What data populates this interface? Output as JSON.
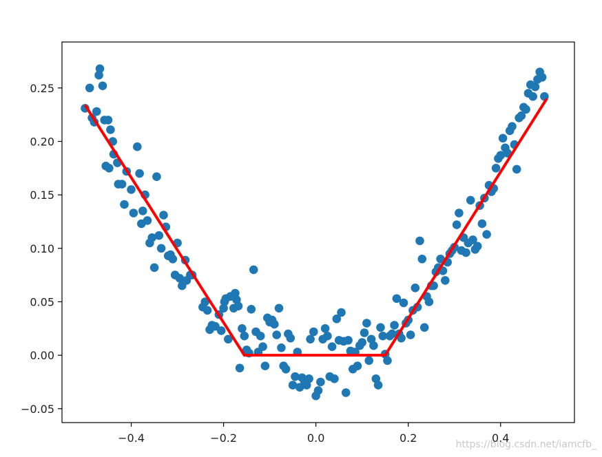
{
  "chart_data": {
    "type": "scatter",
    "title": "",
    "xlabel": "",
    "ylabel": "",
    "xlim": [
      -0.55,
      0.56
    ],
    "ylim": [
      -0.063,
      0.293
    ],
    "x_ticks": [
      -0.4,
      -0.2,
      0.0,
      0.2,
      0.4
    ],
    "x_tick_labels": [
      "−0.4",
      "−0.2",
      "0.0",
      "0.2",
      "0.4"
    ],
    "y_ticks": [
      -0.05,
      0.0,
      0.05,
      0.1,
      0.15,
      0.2,
      0.25
    ],
    "y_tick_labels": [
      "−0.05",
      "0.00",
      "0.05",
      "0.10",
      "0.15",
      "0.20",
      "0.25"
    ],
    "grid": false,
    "colors": {
      "points": "#1f77b4",
      "fit_line": "#ff0000",
      "axes": "#000000"
    },
    "series": [
      {
        "type": "scatter",
        "points": [
          [
            -0.5,
            0.231
          ],
          [
            -0.49,
            0.25
          ],
          [
            -0.485,
            0.222
          ],
          [
            -0.48,
            0.218
          ],
          [
            -0.475,
            0.228
          ],
          [
            -0.47,
            0.262
          ],
          [
            -0.468,
            0.268
          ],
          [
            -0.462,
            0.252
          ],
          [
            -0.458,
            0.22
          ],
          [
            -0.45,
            0.22
          ],
          [
            -0.445,
            0.211
          ],
          [
            -0.44,
            0.2
          ],
          [
            -0.455,
            0.177
          ],
          [
            -0.448,
            0.175
          ],
          [
            -0.438,
            0.188
          ],
          [
            -0.43,
            0.18
          ],
          [
            -0.428,
            0.16
          ],
          [
            -0.42,
            0.16
          ],
          [
            -0.415,
            0.141
          ],
          [
            -0.41,
            0.172
          ],
          [
            -0.4,
            0.155
          ],
          [
            -0.395,
            0.133
          ],
          [
            -0.387,
            0.195
          ],
          [
            -0.382,
            0.17
          ],
          [
            -0.378,
            0.123
          ],
          [
            -0.375,
            0.135
          ],
          [
            -0.37,
            0.15
          ],
          [
            -0.365,
            0.126
          ],
          [
            -0.36,
            0.105
          ],
          [
            -0.355,
            0.11
          ],
          [
            -0.35,
            0.082
          ],
          [
            -0.345,
            0.167
          ],
          [
            -0.34,
            0.112
          ],
          [
            -0.335,
            0.1
          ],
          [
            -0.33,
            0.131
          ],
          [
            -0.325,
            0.12
          ],
          [
            -0.32,
            0.093
          ],
          [
            -0.315,
            0.094
          ],
          [
            -0.31,
            0.09
          ],
          [
            -0.305,
            0.075
          ],
          [
            -0.3,
            0.105
          ],
          [
            -0.295,
            0.072
          ],
          [
            -0.29,
            0.065
          ],
          [
            -0.283,
            0.089
          ],
          [
            -0.28,
            0.07
          ],
          [
            -0.272,
            0.075
          ],
          [
            -0.268,
            0.075
          ],
          [
            -0.245,
            0.045
          ],
          [
            -0.24,
            0.05
          ],
          [
            -0.235,
            0.042
          ],
          [
            -0.23,
            0.024
          ],
          [
            -0.225,
            0.028
          ],
          [
            -0.218,
            0.027
          ],
          [
            -0.21,
            0.038
          ],
          [
            -0.205,
            0.023
          ],
          [
            -0.2,
            0.044
          ],
          [
            -0.198,
            0.05
          ],
          [
            -0.195,
            0.053
          ],
          [
            -0.19,
            0.015
          ],
          [
            -0.185,
            0.055
          ],
          [
            -0.178,
            0.044
          ],
          [
            -0.175,
            0.058
          ],
          [
            -0.172,
            0.052
          ],
          [
            -0.168,
            0.046
          ],
          [
            -0.165,
            -0.012
          ],
          [
            -0.16,
            0.025
          ],
          [
            -0.155,
            0.018
          ],
          [
            -0.15,
            0.005
          ],
          [
            -0.145,
            0.002
          ],
          [
            -0.14,
            0.043
          ],
          [
            -0.135,
            0.08
          ],
          [
            -0.13,
            0.022
          ],
          [
            -0.125,
            0.003
          ],
          [
            -0.12,
            0.018
          ],
          [
            -0.115,
            0.008
          ],
          [
            -0.11,
            -0.01
          ],
          [
            -0.105,
            0.035
          ],
          [
            -0.1,
            0.031
          ],
          [
            -0.095,
            0.033
          ],
          [
            -0.09,
            0.029
          ],
          [
            -0.085,
            0.019
          ],
          [
            -0.08,
            0.044
          ],
          [
            -0.075,
            0.007
          ],
          [
            -0.07,
            -0.01
          ],
          [
            -0.065,
            -0.013
          ],
          [
            -0.06,
            0.02
          ],
          [
            -0.055,
            0.016
          ],
          [
            -0.05,
            -0.028
          ],
          [
            -0.045,
            -0.02
          ],
          [
            -0.04,
            0.003
          ],
          [
            -0.035,
            -0.03
          ],
          [
            -0.03,
            -0.021
          ],
          [
            -0.025,
            -0.024
          ],
          [
            -0.02,
            -0.028
          ],
          [
            -0.015,
            -0.022
          ],
          [
            -0.012,
            0.015
          ],
          [
            -0.005,
            0.022
          ],
          [
            0.0,
            -0.038
          ],
          [
            0.005,
            -0.033
          ],
          [
            0.01,
            -0.025
          ],
          [
            0.015,
            0.015
          ],
          [
            0.02,
            0.025
          ],
          [
            0.025,
            0.018
          ],
          [
            0.03,
            -0.02
          ],
          [
            0.035,
            0.008
          ],
          [
            0.04,
            -0.022
          ],
          [
            0.045,
            0.034
          ],
          [
            0.05,
            0.014
          ],
          [
            0.055,
            0.04
          ],
          [
            0.06,
            0.013
          ],
          [
            0.065,
            -0.035
          ],
          [
            0.07,
            0.014
          ],
          [
            0.075,
            0.004
          ],
          [
            0.08,
            -0.013
          ],
          [
            0.085,
            0.003
          ],
          [
            0.09,
            -0.01
          ],
          [
            0.095,
            0.009
          ],
          [
            0.1,
            0.012
          ],
          [
            0.105,
            0.021
          ],
          [
            0.11,
            0.03
          ],
          [
            0.115,
            -0.005
          ],
          [
            0.12,
            0.015
          ],
          [
            0.125,
            0.009
          ],
          [
            0.13,
            -0.022
          ],
          [
            0.135,
            -0.028
          ],
          [
            0.14,
            0.026
          ],
          [
            0.145,
            0.018
          ],
          [
            0.15,
            0.001
          ],
          [
            0.155,
            -0.005
          ],
          [
            0.16,
            0.018
          ],
          [
            0.165,
            0.02
          ],
          [
            0.17,
            0.028
          ],
          [
            0.175,
            0.053
          ],
          [
            0.18,
            0.02
          ],
          [
            0.185,
            0.016
          ],
          [
            0.19,
            0.049
          ],
          [
            0.195,
            0.03
          ],
          [
            0.2,
            0.033
          ],
          [
            0.205,
            0.019
          ],
          [
            0.21,
            0.042
          ],
          [
            0.215,
            0.063
          ],
          [
            0.22,
            0.045
          ],
          [
            0.225,
            0.107
          ],
          [
            0.23,
            0.09
          ],
          [
            0.235,
            0.026
          ],
          [
            0.24,
            0.055
          ],
          [
            0.245,
            0.05
          ],
          [
            0.25,
            0.065
          ],
          [
            0.255,
            0.065
          ],
          [
            0.26,
            0.078
          ],
          [
            0.265,
            0.082
          ],
          [
            0.27,
            0.09
          ],
          [
            0.275,
            0.079
          ],
          [
            0.28,
            0.07
          ],
          [
            0.285,
            0.087
          ],
          [
            0.29,
            0.095
          ],
          [
            0.295,
            0.098
          ],
          [
            0.3,
            0.101
          ],
          [
            0.305,
            0.122
          ],
          [
            0.31,
            0.133
          ],
          [
            0.315,
            0.098
          ],
          [
            0.32,
            0.11
          ],
          [
            0.325,
            0.096
          ],
          [
            0.33,
            0.105
          ],
          [
            0.335,
            0.145
          ],
          [
            0.34,
            0.108
          ],
          [
            0.345,
            0.099
          ],
          [
            0.35,
            0.102
          ],
          [
            0.355,
            0.14
          ],
          [
            0.36,
            0.123
          ],
          [
            0.365,
            0.147
          ],
          [
            0.37,
            0.113
          ],
          [
            0.375,
            0.159
          ],
          [
            0.38,
            0.153
          ],
          [
            0.385,
            0.156
          ],
          [
            0.39,
            0.175
          ],
          [
            0.395,
            0.184
          ],
          [
            0.4,
            0.187
          ],
          [
            0.405,
            0.203
          ],
          [
            0.41,
            0.194
          ],
          [
            0.415,
            0.189
          ],
          [
            0.42,
            0.21
          ],
          [
            0.425,
            0.214
          ],
          [
            0.43,
            0.197
          ],
          [
            0.435,
            0.174
          ],
          [
            0.44,
            0.222
          ],
          [
            0.445,
            0.224
          ],
          [
            0.45,
            0.232
          ],
          [
            0.455,
            0.23
          ],
          [
            0.46,
            0.245
          ],
          [
            0.465,
            0.253
          ],
          [
            0.47,
            0.242
          ],
          [
            0.475,
            0.251
          ],
          [
            0.48,
            0.258
          ],
          [
            0.485,
            0.265
          ],
          [
            0.49,
            0.26
          ],
          [
            0.495,
            0.242
          ]
        ]
      },
      {
        "type": "line",
        "points": [
          [
            -0.5,
            0.234
          ],
          [
            -0.155,
            0.0
          ],
          [
            0.15,
            0.0
          ],
          [
            0.5,
            0.24
          ]
        ]
      }
    ]
  },
  "watermark": "https://blog.csdn.net/iamcfb_"
}
